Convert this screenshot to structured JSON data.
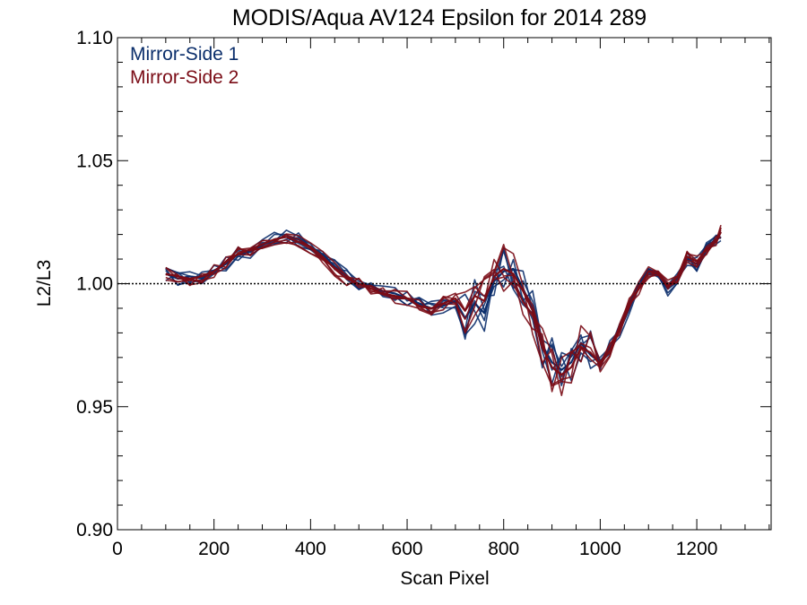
{
  "chart_data": {
    "type": "line",
    "title": "MODIS/Aqua AV124 Epsilon for 2014 289",
    "xlabel": "Scan Pixel",
    "ylabel": "L2/L3",
    "xlim": [
      0,
      1354
    ],
    "ylim": [
      0.9,
      1.1
    ],
    "xticks": [
      0,
      200,
      400,
      600,
      800,
      1000,
      1200
    ],
    "xtick_labels": [
      "0",
      "200",
      "400",
      "600",
      "800",
      "1000",
      "1200"
    ],
    "yticks": [
      0.9,
      0.95,
      1.0,
      1.05,
      1.1
    ],
    "ytick_labels": [
      "0.90",
      "0.95",
      "1.00",
      "1.05",
      "1.10"
    ],
    "reference_line": {
      "y": 1.0,
      "style": "dotted"
    },
    "grid": false,
    "legend_position": "top-left",
    "x": [
      100,
      125,
      150,
      175,
      200,
      225,
      250,
      275,
      300,
      325,
      350,
      375,
      400,
      425,
      450,
      475,
      500,
      525,
      550,
      575,
      600,
      625,
      650,
      675,
      700,
      720,
      740,
      760,
      780,
      800,
      820,
      840,
      860,
      880,
      900,
      920,
      940,
      960,
      980,
      1000,
      1020,
      1040,
      1060,
      1080,
      1100,
      1120,
      1140,
      1160,
      1180,
      1200,
      1220,
      1240,
      1250
    ],
    "series": [
      {
        "name": "Mirror-Side 1",
        "color": "#0b2e6b",
        "values": [
          1.004,
          1.002,
          1.003,
          1.002,
          1.005,
          1.008,
          1.012,
          1.013,
          1.016,
          1.018,
          1.019,
          1.018,
          1.015,
          1.012,
          1.007,
          1.003,
          1.0,
          0.999,
          0.997,
          0.996,
          0.994,
          0.992,
          0.99,
          0.991,
          0.993,
          0.986,
          0.992,
          0.988,
          1.001,
          1.005,
          1.006,
          0.998,
          0.99,
          0.975,
          0.968,
          0.965,
          0.968,
          0.976,
          0.971,
          0.968,
          0.974,
          0.981,
          0.99,
          0.999,
          1.006,
          1.004,
          0.998,
          1.002,
          1.01,
          1.008,
          1.015,
          1.018,
          1.019
        ]
      },
      {
        "name": "Mirror-Side 2",
        "color": "#7a0c16",
        "values": [
          1.004,
          1.003,
          1.002,
          1.003,
          1.005,
          1.009,
          1.012,
          1.014,
          1.016,
          1.018,
          1.019,
          1.017,
          1.015,
          1.011,
          1.006,
          1.002,
          1.0,
          0.998,
          0.996,
          0.995,
          0.994,
          0.991,
          0.99,
          0.992,
          0.994,
          0.989,
          0.995,
          0.993,
          1.003,
          1.006,
          1.004,
          0.997,
          0.989,
          0.974,
          0.966,
          0.963,
          0.966,
          0.974,
          0.972,
          0.967,
          0.973,
          0.982,
          0.991,
          0.998,
          1.005,
          1.004,
          0.999,
          1.003,
          1.011,
          1.009,
          1.014,
          1.017,
          1.021
        ]
      }
    ]
  }
}
